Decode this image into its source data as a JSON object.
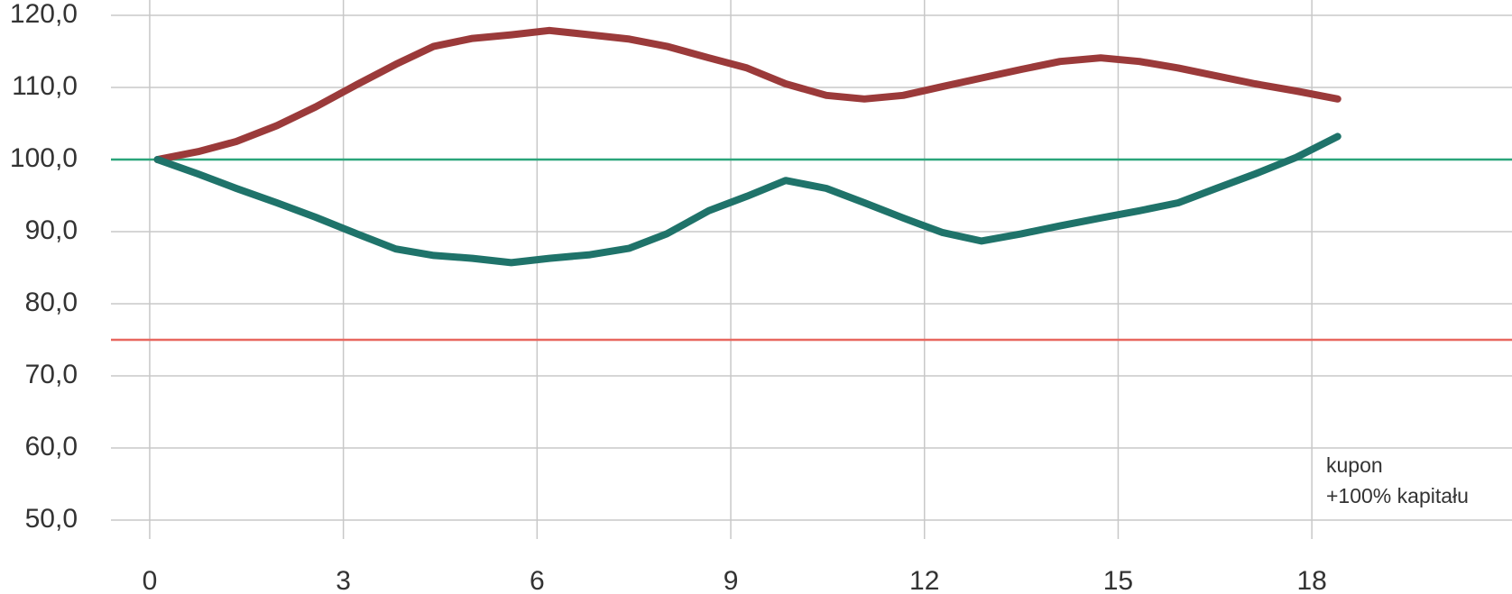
{
  "chart_data": {
    "type": "line",
    "x": [
      0.12,
      0.75,
      1.34,
      1.97,
      2.57,
      3.21,
      3.81,
      4.4,
      5.0,
      5.6,
      6.19,
      6.82,
      7.43,
      8.01,
      8.66,
      9.25,
      9.85,
      10.48,
      11.07,
      11.67,
      12.27,
      12.88,
      13.5,
      14.1,
      14.73,
      15.33,
      15.93,
      16.52,
      17.12,
      17.76,
      18.4
    ],
    "series": [
      {
        "color": "#9b3a3a",
        "values": [
          100,
          101.1,
          102.5,
          104.7,
          107.3,
          110.4,
          113.2,
          115.7,
          116.8,
          117.3,
          117.9,
          117.3,
          116.7,
          115.7,
          114.1,
          112.7,
          110.5,
          108.9,
          108.4,
          108.9,
          110.1,
          111.3,
          112.5,
          113.6,
          114.1,
          113.6,
          112.7,
          111.6,
          110.5,
          109.5,
          108.4
        ]
      },
      {
        "color": "#1f736a",
        "values": [
          100,
          98,
          96,
          94,
          92,
          89.7,
          87.6,
          86.7,
          86.3,
          85.7,
          86.3,
          86.8,
          87.7,
          89.7,
          92.9,
          94.9,
          97.1,
          96,
          94,
          91.9,
          89.9,
          88.7,
          89.7,
          90.8,
          91.9,
          92.9,
          94,
          96,
          98,
          100.3,
          103.2
        ]
      }
    ],
    "hlines": [
      {
        "value": 100,
        "color": "#2aa57a"
      },
      {
        "value": 75,
        "color": "#e8675f"
      }
    ],
    "annotation": [
      "kupon",
      "+100% kapitału"
    ],
    "xlim": [
      -0.6,
      21.1
    ],
    "xticks": [
      0,
      3,
      6,
      9,
      12,
      15,
      18
    ],
    "ylim": [
      50,
      120
    ],
    "yticks": [
      {
        "value": 50,
        "label": "50,0"
      },
      {
        "value": 60,
        "label": "60,0"
      },
      {
        "value": 70,
        "label": "70,0"
      },
      {
        "value": 80,
        "label": "80,0"
      },
      {
        "value": 90,
        "label": "90,0"
      },
      {
        "value": 100,
        "label": "100,0"
      },
      {
        "value": 110,
        "label": "110,0"
      },
      {
        "value": 120,
        "label": "120,0"
      }
    ],
    "grid": true
  }
}
